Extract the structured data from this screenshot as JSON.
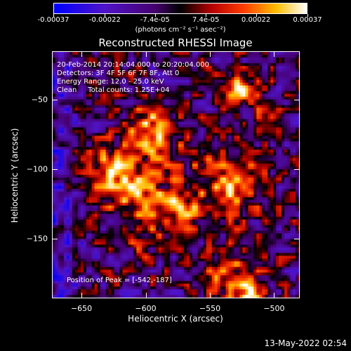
{
  "colorbar": {
    "tick_labels": [
      "-0.00037",
      "-0.00022",
      "-7.4e-05",
      "7.4e-05",
      "0.00022",
      "0.00037"
    ],
    "units_label": "(photons cm⁻² s⁻¹ asec⁻²)",
    "range": [
      -0.00037,
      0.00037
    ]
  },
  "title": "Reconstructed RHESSI Image",
  "info": {
    "time": "20-Feb-2014 20:14:04.000 to 20:20:04.000",
    "detectors": "Detectors: 3F 4F 5F 6F 7F 8F, Att 0",
    "energy": "Energy Range: 12.0 - 25.0 keV",
    "clean": "Clean     Total counts: 1.25E+04",
    "peak": "Position of Peak = [-542,-187]"
  },
  "chart_data": {
    "type": "heatmap",
    "title": "Reconstructed RHESSI Image",
    "xlabel": "Heliocentric X (arcsec)",
    "ylabel": "Heliocentric Y (arcsec)",
    "xlim": [
      -673,
      -480
    ],
    "ylim": [
      -193,
      -15
    ],
    "xticks": [
      -650,
      -600,
      -550,
      -500
    ],
    "yticks": [
      -50,
      -100,
      -150
    ],
    "x_tick_labels": [
      "−650",
      "−600",
      "−550",
      "−500"
    ],
    "y_tick_labels": [
      "−50",
      "−100",
      "−150"
    ],
    "colormap": "red-temperature with blue-purple negatives"
  },
  "timestamp": "13-May-2022 02:54"
}
